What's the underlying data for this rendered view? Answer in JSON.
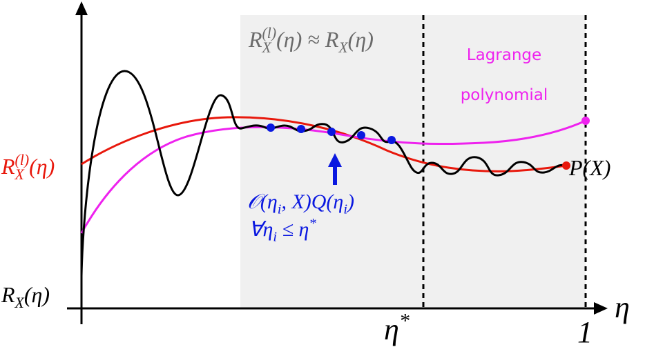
{
  "labels": {
    "approx": [
      {
        "text": "R"
      },
      {
        "sub": "X",
        "sup": "(l)"
      },
      {
        "text": "(η) ≈ R"
      },
      {
        "sub": "X"
      },
      {
        "text": "(η)"
      }
    ],
    "red_label": [
      {
        "text": "R"
      },
      {
        "sub": "X",
        "sup": "(l)"
      },
      {
        "text": "(η)"
      }
    ],
    "rx_label": [
      {
        "text": "R"
      },
      {
        "sub": "X"
      },
      {
        "text": "(η)"
      }
    ],
    "px_label": [
      {
        "text": "P(X)"
      }
    ],
    "measure": [
      {
        "text": "𝒪(η"
      },
      {
        "sub": "i"
      },
      {
        "text": ", X)Q(η"
      },
      {
        "sub": "i"
      },
      {
        "text": ")"
      }
    ],
    "condition": [
      {
        "text": "∀η"
      },
      {
        "sub": "i"
      },
      {
        "text": " ≤ η"
      },
      {
        "sup": "*"
      }
    ],
    "x_axis_label": [
      {
        "text": "η"
      }
    ],
    "eta_star": [
      {
        "text": "η"
      },
      {
        "sup": "*"
      }
    ],
    "one": [
      {
        "text": "1"
      }
    ]
  },
  "lagrange": [
    "Lagrange",
    "polynomial"
  ]
}
